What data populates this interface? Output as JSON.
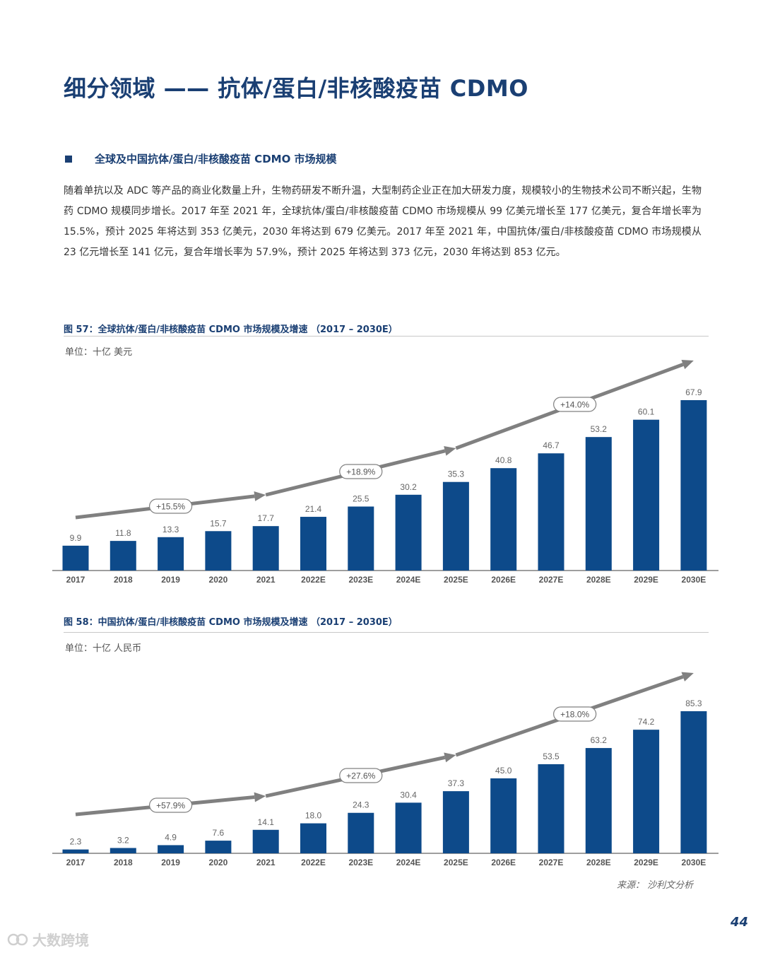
{
  "page": {
    "title": "细分领域 —— 抗体/蛋白/非核酸疫苗 CDMO",
    "section_title": "全球及中国抗体/蛋白/非核酸疫苗 CDMO 市场规模",
    "body_text": "随着单抗以及 ADC 等产品的商业化数量上升，生物药研发不断升温，大型制药企业正在加大研发力度，规模较小的生物技术公司不断兴起，生物药 CDMO 规模同步增长。2017 年至 2021 年，全球抗体/蛋白/非核酸疫苗 CDMO 市场规模从 99 亿美元增长至 177 亿美元，复合年增长率为 15.5%，预计 2025 年将达到 353 亿美元，2030 年将达到 679 亿美元。2017 年至 2021 年，中国抗体/蛋白/非核酸疫苗 CDMO 市场规模从 23 亿元增长至 141 亿元，复合年增长率为 57.9%，预计 2025 年将达到 373 亿元，2030 年将达到 853 亿元。",
    "source": "来源：  沙利文分析",
    "page_number": "44",
    "watermark": "大数跨境"
  },
  "figures": [
    {
      "title": "图 57：全球抗体/蛋白/非核酸疫苗 CDMO 市场规模及增速 （2017 – 2030E）",
      "unit": "单位：十亿 美元"
    },
    {
      "title": "图 58：中国抗体/蛋白/非核酸疫苗 CDMO 市场规模及增速 （2017 – 2030E）",
      "unit": "单位：十亿 人民币"
    }
  ],
  "colors": {
    "bar": "#0d4a8a",
    "title": "#1a3f73",
    "arrow": "#808080"
  },
  "chart_data": [
    {
      "type": "bar",
      "categories": [
        "2017",
        "2018",
        "2019",
        "2020",
        "2021",
        "2022E",
        "2023E",
        "2024E",
        "2025E",
        "2026E",
        "2027E",
        "2028E",
        "2029E",
        "2030E"
      ],
      "values": [
        9.9,
        11.8,
        13.3,
        15.7,
        17.7,
        21.4,
        25.5,
        30.2,
        35.3,
        40.8,
        46.7,
        53.2,
        60.1,
        67.9
      ],
      "labels": [
        "9.9",
        "11.8",
        "13.3",
        "15.7",
        "17.7",
        "21.4",
        "25.5",
        "30.2",
        "35.3",
        "40.8",
        "46.7",
        "53.2",
        "60.1",
        "67.9"
      ],
      "ylim": [
        0,
        67.9
      ],
      "growth_annotations": [
        {
          "label": "+15.5%",
          "from": "2017",
          "to": "2021"
        },
        {
          "label": "+18.9%",
          "from": "2021",
          "to": "2025E"
        },
        {
          "label": "+14.0%",
          "from": "2025E",
          "to": "2030E"
        }
      ]
    },
    {
      "type": "bar",
      "categories": [
        "2017",
        "2018",
        "2019",
        "2020",
        "2021",
        "2022E",
        "2023E",
        "2024E",
        "2025E",
        "2026E",
        "2027E",
        "2028E",
        "2029E",
        "2030E"
      ],
      "values": [
        2.3,
        3.2,
        4.9,
        7.6,
        14.1,
        18.0,
        24.3,
        30.4,
        37.3,
        45.0,
        53.5,
        63.2,
        74.2,
        85.3
      ],
      "labels": [
        "2.3",
        "3.2",
        "4.9",
        "7.6",
        "14.1",
        "18.0",
        "24.3",
        "30.4",
        "37.3",
        "45.0",
        "53.5",
        "63.2",
        "74.2",
        "85.3"
      ],
      "ylim": [
        0,
        85.3
      ],
      "growth_annotations": [
        {
          "label": "+57.9%",
          "from": "2017",
          "to": "2021"
        },
        {
          "label": "+27.6%",
          "from": "2021",
          "to": "2025E"
        },
        {
          "label": "+18.0%",
          "from": "2025E",
          "to": "2030E"
        }
      ]
    }
  ]
}
